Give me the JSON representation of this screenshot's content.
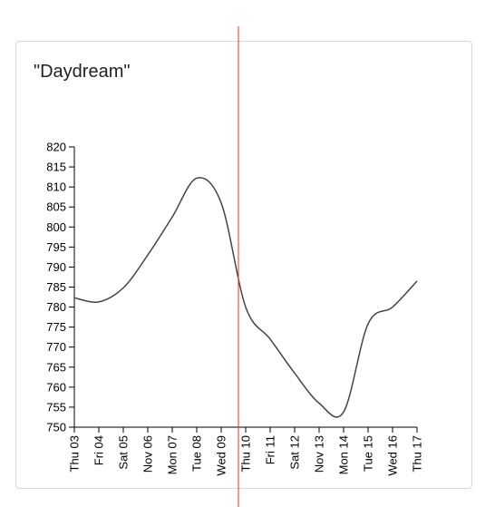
{
  "card": {
    "title": "\"Daydream\""
  },
  "colors": {
    "line": "#444444",
    "cursor": "#e8322c",
    "axis": "#000000"
  },
  "chart_data": {
    "type": "line",
    "title": "\"Daydream\"",
    "xlabel": "",
    "ylabel": "",
    "ylim": [
      750,
      820
    ],
    "y_ticks": [
      750,
      755,
      760,
      765,
      770,
      775,
      780,
      785,
      790,
      795,
      800,
      805,
      810,
      815,
      820
    ],
    "categories": [
      "Thu 03",
      "Fri 04",
      "Sat 05",
      "Nov 06",
      "Mon 07",
      "Tue 08",
      "Wed 09",
      "Thu 10",
      "Fri 11",
      "Sat 12",
      "Nov 13",
      "Mon 14",
      "Tue 15",
      "Wed 16",
      "Thu 17"
    ],
    "series": [
      {
        "values": [
          782.3,
          781.3,
          784.8,
          793,
          802.5,
          812.2,
          806,
          780,
          772,
          763.5,
          756,
          753.8,
          775.8,
          780,
          786.5
        ]
      }
    ],
    "cursor_x": 7,
    "grid": false,
    "legend": "none"
  }
}
